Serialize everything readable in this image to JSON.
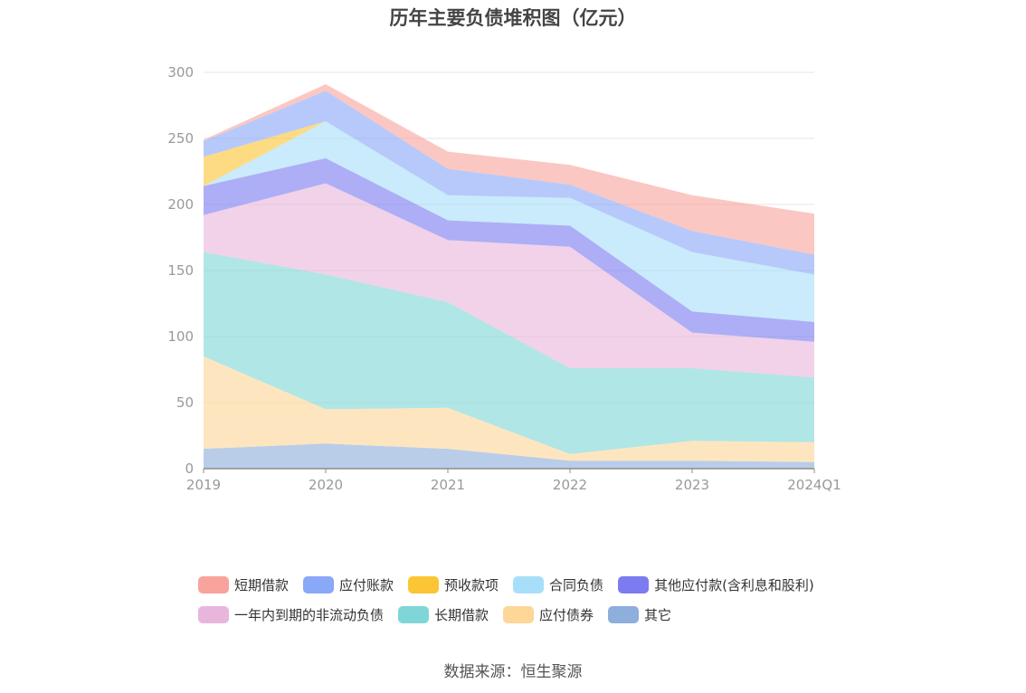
{
  "chart_data": {
    "type": "area",
    "title": "历年主要负债堆积图（亿元）",
    "categories": [
      "2019",
      "2020",
      "2021",
      "2022",
      "2023",
      "2024Q1"
    ],
    "ylim": [
      0,
      300
    ],
    "yticks": [
      0,
      50,
      100,
      150,
      200,
      250,
      300
    ],
    "stacked": true,
    "grid": true,
    "legend_position": "bottom",
    "series": [
      {
        "name": "其它",
        "color": "#8eaedc",
        "values": [
          15,
          19,
          15,
          6,
          6,
          5
        ]
      },
      {
        "name": "应付债券",
        "color": "#fcd797",
        "values": [
          70,
          26,
          31,
          5,
          15,
          15
        ]
      },
      {
        "name": "长期借款",
        "color": "#80d6d6",
        "values": [
          79,
          102,
          80,
          65,
          55,
          49
        ]
      },
      {
        "name": "一年内到期的非流动负债",
        "color": "#e8b6dc",
        "values": [
          28,
          69,
          47,
          92,
          27,
          27
        ]
      },
      {
        "name": "其他应付款(含利息和股利)",
        "color": "#7c7cf0",
        "values": [
          22,
          19,
          15,
          16,
          16,
          15
        ]
      },
      {
        "name": "合同负债",
        "color": "#a8dff8",
        "values": [
          0,
          28,
          19,
          21,
          45,
          36
        ]
      },
      {
        "name": "预收款项",
        "color": "#fcc535",
        "values": [
          22,
          0,
          0,
          0,
          0,
          0
        ]
      },
      {
        "name": "应付账款",
        "color": "#8aa8f8",
        "values": [
          12,
          23,
          20,
          10,
          16,
          15
        ]
      },
      {
        "name": "短期借款",
        "color": "#f8a49c",
        "values": [
          1,
          5,
          13,
          15,
          27,
          31
        ]
      }
    ]
  },
  "legend_rows": [
    [
      {
        "name": "短期借款",
        "color": "#f8a49c"
      },
      {
        "name": "应付账款",
        "color": "#8aa8f8"
      },
      {
        "name": "预收款项",
        "color": "#fcc535"
      },
      {
        "name": "合同负债",
        "color": "#a8dff8"
      },
      {
        "name": "其他应付款(含利息和股利)",
        "color": "#7c7cf0"
      }
    ],
    [
      {
        "name": "一年内到期的非流动负债",
        "color": "#e8b6dc"
      },
      {
        "name": "长期借款",
        "color": "#80d6d6"
      },
      {
        "name": "应付债券",
        "color": "#fcd797"
      },
      {
        "name": "其它",
        "color": "#8eaedc"
      }
    ]
  ],
  "source": "数据来源：恒生聚源"
}
